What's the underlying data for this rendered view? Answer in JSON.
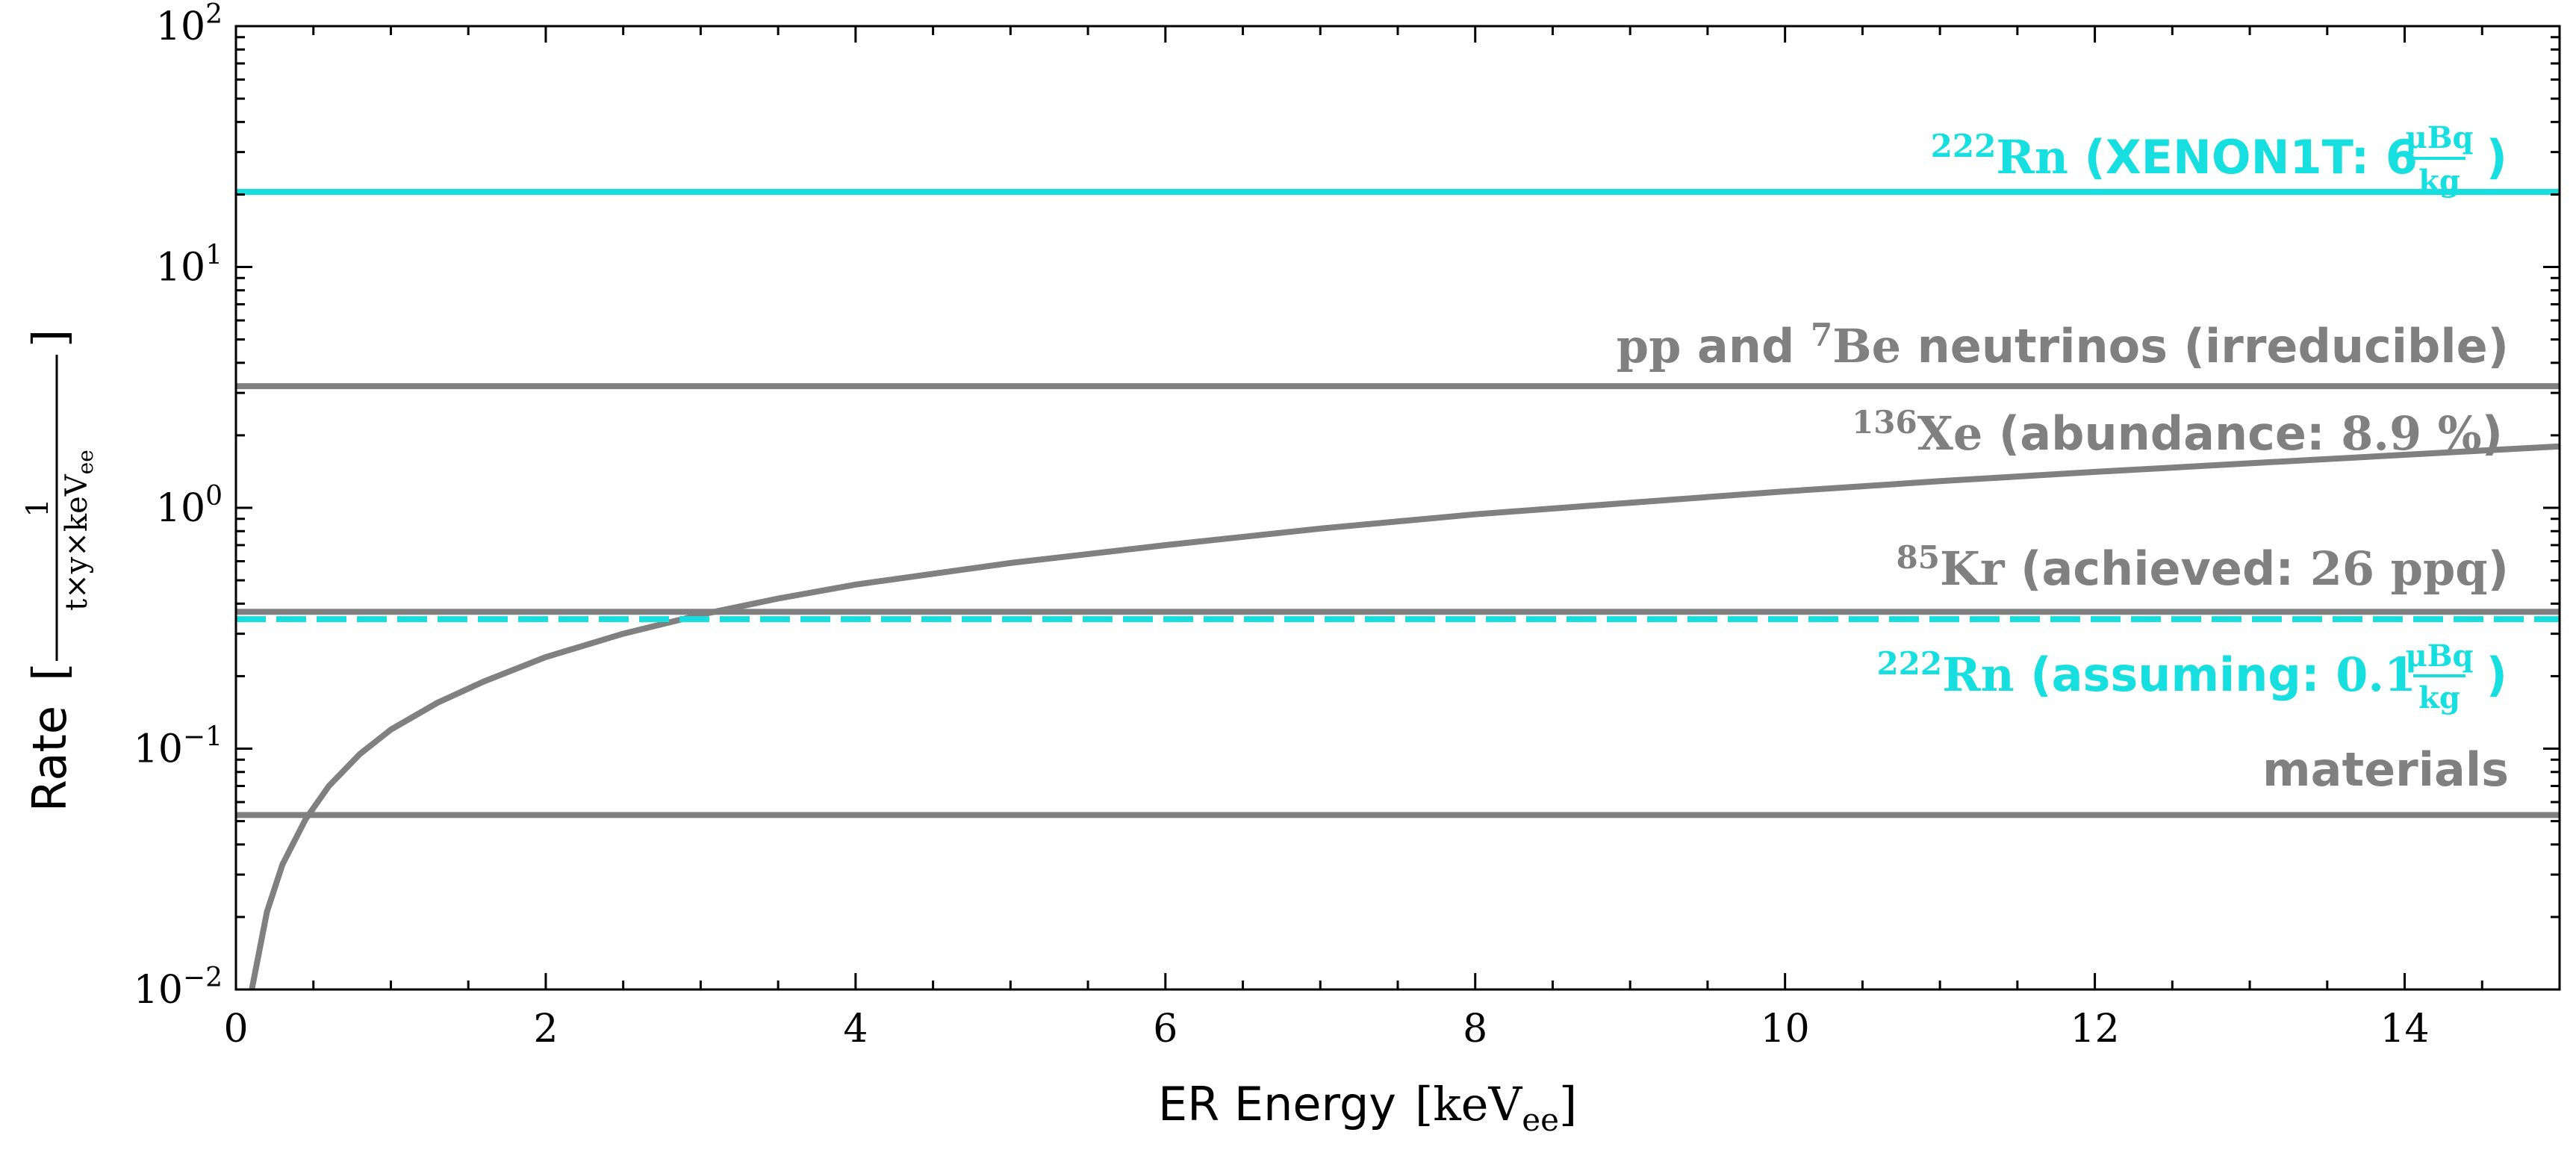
{
  "chart_data": {
    "type": "line",
    "xlabel": "ER Energy",
    "xlabel_unit": "keV",
    "xlabel_unit_sub": "ee",
    "ylabel": "Rate",
    "ylabel_unit_num": "1",
    "ylabel_unit_den": "t×y×keV",
    "ylabel_unit_den_sub": "ee",
    "xlim": [
      0,
      15
    ],
    "ylim": [
      0.01,
      100
    ],
    "yscale": "log",
    "x_ticks": [
      "0",
      "2",
      "4",
      "6",
      "8",
      "10",
      "12",
      "14"
    ],
    "y_ticks": [
      {
        "base": "10",
        "exp": "−2",
        "value": 0.01
      },
      {
        "base": "10",
        "exp": "−1",
        "value": 0.1
      },
      {
        "base": "10",
        "exp": "0",
        "value": 1
      },
      {
        "base": "10",
        "exp": "1",
        "value": 10
      },
      {
        "base": "10",
        "exp": "2",
        "value": 100
      }
    ],
    "series": [
      {
        "name": "222Rn (XENON1T: 6 μBq/kg)",
        "color": "#17dfe0",
        "style": "solid",
        "x": [
          0,
          15
        ],
        "y": [
          20.5,
          20.5
        ],
        "label": {
          "sup": "222",
          "elem": "Rn",
          "text": " (XENON1T: 6 ",
          "frac_num": "μBq",
          "frac_den": "kg",
          "close": ")"
        }
      },
      {
        "name": "pp and 7Be neutrinos (irreducible)",
        "color": "#808080",
        "style": "solid",
        "x": [
          0,
          15
        ],
        "y": [
          3.2,
          3.2
        ],
        "label": {
          "pre": "pp",
          "mid": " and ",
          "sup": "7",
          "elem": "Be",
          "text": " neutrinos (irreducible)"
        }
      },
      {
        "name": "136Xe (abundance: 8.9 %)",
        "color": "#808080",
        "style": "solid",
        "x": [
          0.1,
          0.2,
          0.3,
          0.45,
          0.6,
          0.8,
          1.0,
          1.3,
          1.6,
          2.0,
          2.5,
          3.0,
          3.5,
          4.0,
          5.0,
          6.0,
          7.0,
          8.0,
          9.0,
          10.0,
          11.0,
          12.0,
          13.0,
          14.0,
          15.0
        ],
        "y": [
          0.0098,
          0.021,
          0.033,
          0.051,
          0.07,
          0.095,
          0.12,
          0.155,
          0.19,
          0.24,
          0.3,
          0.36,
          0.42,
          0.48,
          0.59,
          0.7,
          0.82,
          0.94,
          1.05,
          1.17,
          1.29,
          1.41,
          1.53,
          1.66,
          1.8
        ],
        "label": {
          "sup": "136",
          "elem": "Xe",
          "text": " (abundance: ",
          "num": "8.9 %",
          "close": ")"
        }
      },
      {
        "name": "85Kr (achieved: 26 ppq)",
        "color": "#808080",
        "style": "solid",
        "x": [
          0,
          15
        ],
        "y": [
          0.37,
          0.37
        ],
        "label": {
          "sup": "85",
          "elem": "Kr",
          "text": " (achieved: ",
          "num": "26 ppq",
          "close": ")"
        }
      },
      {
        "name": "222Rn (assuming: 0.1 μBq/kg)",
        "color": "#17dfe0",
        "style": "dashed",
        "x": [
          0,
          15
        ],
        "y": [
          0.345,
          0.345
        ],
        "label": {
          "sup": "222",
          "elem": "Rn",
          "text": " (assuming: ",
          "num": "0.1 ",
          "frac_num": "μBq",
          "frac_den": "kg",
          "close": ")"
        }
      },
      {
        "name": "materials",
        "color": "#808080",
        "style": "solid",
        "x": [
          0,
          15
        ],
        "y": [
          0.053,
          0.053
        ],
        "label": {
          "text": "materials"
        }
      }
    ]
  }
}
